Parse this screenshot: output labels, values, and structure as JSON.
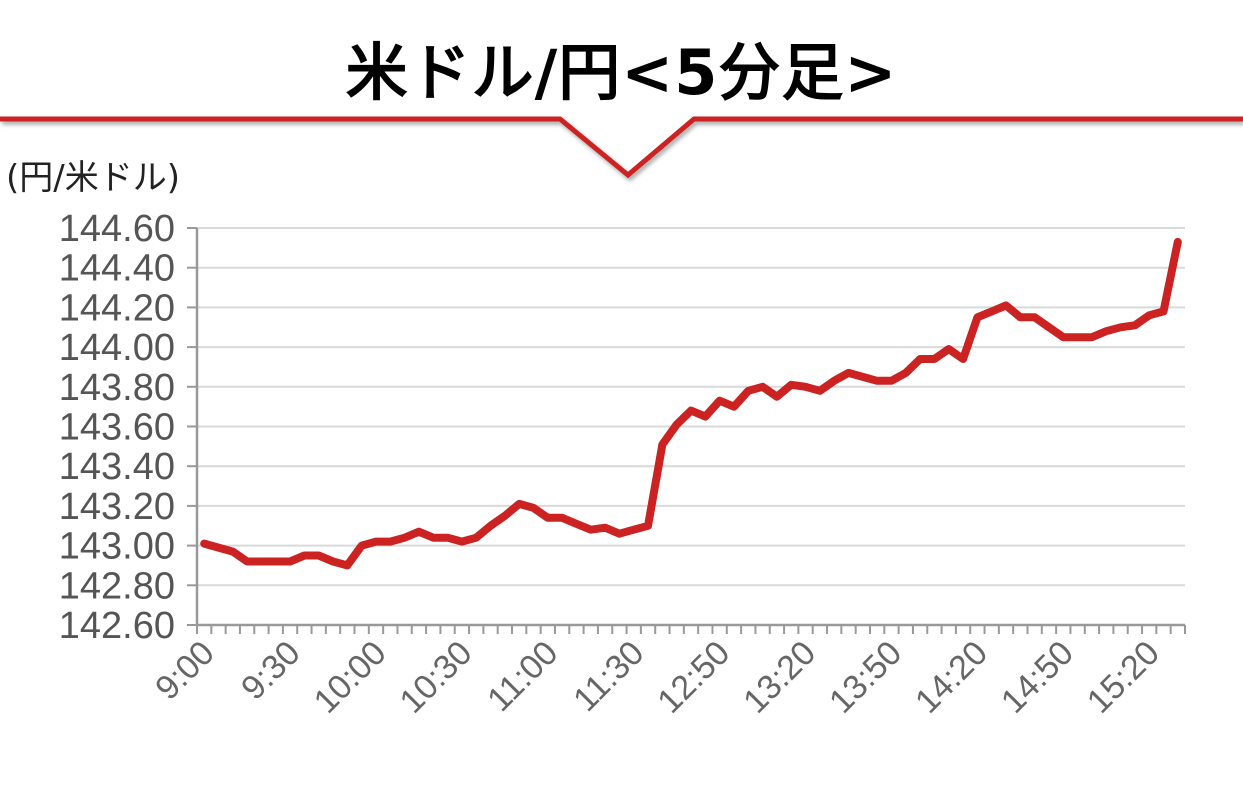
{
  "chart_data": {
    "type": "line",
    "title": "米ドル/円<5分足>",
    "ylabel": "(円/米ドル)",
    "xlabel": "",
    "ylim": [
      142.6,
      144.6
    ],
    "yticks": [
      "144.60",
      "144.40",
      "144.20",
      "144.00",
      "143.80",
      "143.60",
      "143.40",
      "143.20",
      "143.00",
      "142.80",
      "142.60"
    ],
    "xtick_labels": [
      "9:00",
      "9:30",
      "10:00",
      "10:30",
      "11:00",
      "11:30",
      "12:50",
      "13:20",
      "13:50",
      "14:20",
      "14:50",
      "15:20"
    ],
    "grid": true,
    "colors": {
      "line": "#cc2222",
      "header_rule": "#cc2222",
      "grid": "#d9d9d9",
      "axis": "#999999"
    },
    "series": [
      {
        "values": [
          143.01,
          142.99,
          142.97,
          142.92,
          142.92,
          142.92,
          142.92,
          142.95,
          142.95,
          142.92,
          142.9,
          143.0,
          143.02,
          143.02,
          143.04,
          143.07,
          143.04,
          143.04,
          143.02,
          143.04,
          143.1,
          143.15,
          143.21,
          143.19,
          143.14,
          143.14,
          143.11,
          143.08,
          143.09,
          143.06,
          143.08,
          143.1,
          143.51,
          143.61,
          143.68,
          143.65,
          143.73,
          143.7,
          143.78,
          143.8,
          143.75,
          143.81,
          143.8,
          143.78,
          143.83,
          143.87,
          143.85,
          143.83,
          143.83,
          143.87,
          143.94,
          143.94,
          143.99,
          143.94,
          144.15,
          144.18,
          144.21,
          144.15,
          144.15,
          144.1,
          144.05,
          144.05,
          144.05,
          144.08,
          144.1,
          144.11,
          144.16,
          144.18,
          144.53
        ]
      }
    ]
  }
}
